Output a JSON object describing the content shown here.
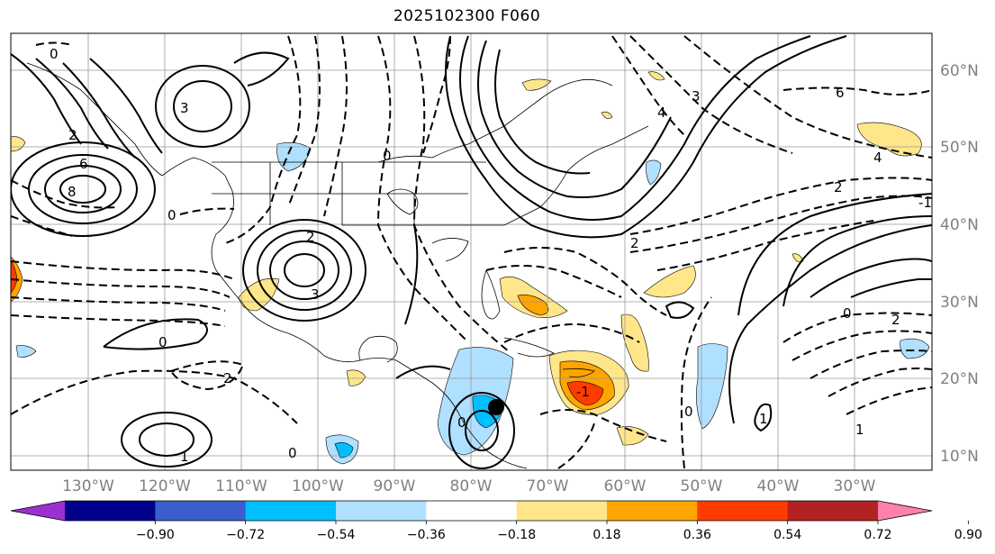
{
  "title": "2025102300 F060",
  "lat_labels": [
    "60°N",
    "50°N",
    "40°N",
    "30°N",
    "20°N",
    "10°N"
  ],
  "lon_labels": [
    "130°W",
    "120°W",
    "110°W",
    "100°W",
    "90°W",
    "80°W",
    "70°W",
    "60°W",
    "50°W",
    "40°W",
    "30°W"
  ],
  "colorbar": {
    "tick_labels": [
      "−0.90",
      "−0.72",
      "−0.54",
      "−0.36",
      "−0.18",
      "0.18",
      "0.36",
      "0.54",
      "0.72",
      "0.90"
    ],
    "colors": [
      "#9b30d0",
      "#00008b",
      "#3a5fcd",
      "#00bfff",
      "#b0e0ff",
      "#ffffff",
      "#ffe68a",
      "#ffa500",
      "#ff3c00",
      "#b22222",
      "#ff80aa"
    ]
  },
  "contour_labels": [
    "0",
    "0",
    "0",
    "0",
    "0",
    "2",
    "2",
    "2",
    "2",
    "3",
    "3",
    "4",
    "4",
    "6",
    "6",
    "8",
    "1",
    "1",
    "1",
    "3",
    "2",
    "0",
    "0",
    "2",
    "0",
    "-1",
    "-1"
  ],
  "marker": "storm-position-dot"
}
